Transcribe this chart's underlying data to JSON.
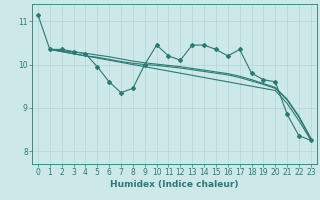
{
  "title": "",
  "xlabel": "Humidex (Indice chaleur)",
  "xlim": [
    -0.5,
    23.5
  ],
  "ylim": [
    7.7,
    11.4
  ],
  "yticks": [
    8,
    9,
    10,
    11
  ],
  "xticks": [
    0,
    1,
    2,
    3,
    4,
    5,
    6,
    7,
    8,
    9,
    10,
    11,
    12,
    13,
    14,
    15,
    16,
    17,
    18,
    19,
    20,
    21,
    22,
    23
  ],
  "bg_color": "#cce8e8",
  "line_color": "#2d7a72",
  "grid_color": "#b8d8d8",
  "lines": [
    {
      "x": [
        0,
        1,
        2,
        3,
        4,
        5,
        6,
        7,
        8,
        9,
        10,
        11,
        12,
        13,
        14,
        15,
        16,
        17,
        18,
        19,
        20,
        21,
        22,
        23
      ],
      "y": [
        11.15,
        10.35,
        10.35,
        10.3,
        10.25,
        9.95,
        9.6,
        9.35,
        9.45,
        10.0,
        10.45,
        10.2,
        10.1,
        10.45,
        10.45,
        10.35,
        10.2,
        10.35,
        9.8,
        9.65,
        9.6,
        8.85,
        8.35,
        8.25
      ],
      "marker": true
    },
    {
      "x": [
        1,
        2,
        3,
        4,
        5,
        6,
        7,
        8,
        9,
        10,
        11,
        12,
        13,
        14,
        15,
        16,
        17,
        18,
        19,
        20,
        21,
        22,
        23
      ],
      "y": [
        10.35,
        10.3,
        10.25,
        10.2,
        10.15,
        10.1,
        10.05,
        10.0,
        9.95,
        9.9,
        9.85,
        9.8,
        9.75,
        9.7,
        9.65,
        9.6,
        9.55,
        9.5,
        9.45,
        9.4,
        9.1,
        8.7,
        8.25
      ],
      "marker": false
    },
    {
      "x": [
        1,
        2,
        3,
        4,
        5,
        6,
        7,
        8,
        9,
        10,
        11,
        12,
        13,
        14,
        15,
        16,
        17,
        18,
        19,
        20,
        21,
        22,
        23
      ],
      "y": [
        10.35,
        10.3,
        10.25,
        10.2,
        10.17,
        10.12,
        10.07,
        10.03,
        10.0,
        9.98,
        9.95,
        9.92,
        9.88,
        9.84,
        9.8,
        9.76,
        9.7,
        9.62,
        9.54,
        9.45,
        9.18,
        8.78,
        8.28
      ],
      "marker": false
    },
    {
      "x": [
        1,
        2,
        3,
        4,
        5,
        6,
        7,
        8,
        9,
        10,
        11,
        12,
        13,
        14,
        15,
        16,
        17,
        18,
        19,
        20,
        21,
        22,
        23
      ],
      "y": [
        10.35,
        10.32,
        10.29,
        10.26,
        10.22,
        10.18,
        10.13,
        10.08,
        10.04,
        10.01,
        9.98,
        9.95,
        9.91,
        9.87,
        9.83,
        9.79,
        9.73,
        9.65,
        9.56,
        9.47,
        9.2,
        8.8,
        8.3
      ],
      "marker": false
    }
  ]
}
